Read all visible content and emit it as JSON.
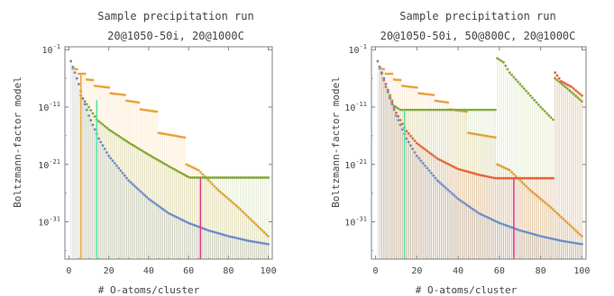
{
  "chart_data": [
    {
      "type": "scatter",
      "title": "Sample precipitation run",
      "subtitle": "20@1050-50i, 20@1000C",
      "xlabel": "# O-atoms/cluster",
      "ylabel": "Boltzmann-factor model",
      "x_ticks": [
        0,
        20,
        40,
        60,
        80,
        100
      ],
      "y_ticks": [
        {
          "base": "10",
          "exp": "-1",
          "value": -1
        },
        {
          "base": "10",
          "exp": "-11",
          "value": -11
        },
        {
          "base": "10",
          "exp": "-21",
          "value": -21
        },
        {
          "base": "10",
          "exp": "-31",
          "value": -31
        }
      ],
      "xlim": [
        -2,
        102
      ],
      "ylim_log10": [
        -37.5,
        -0.5
      ],
      "series": [
        {
          "color": "#e8a33c",
          "points": [
            [
              2,
              -4.3
            ],
            [
              4,
              -4.4
            ],
            [
              5,
              -5.2
            ],
            [
              8,
              -5.2
            ],
            [
              9,
              -6.2
            ],
            [
              12,
              -6.3
            ],
            [
              13,
              -7.3
            ],
            [
              20,
              -7.6
            ],
            [
              21,
              -8.6
            ],
            [
              28,
              -8.9
            ],
            [
              29,
              -9.9
            ],
            [
              35,
              -10.2
            ],
            [
              36,
              -11.4
            ],
            [
              44,
              -11.8
            ],
            [
              45,
              -15.5
            ],
            [
              58,
              -16.3
            ],
            [
              59,
              -21.0
            ],
            [
              65,
              -22.0
            ],
            [
              75,
              -25.5
            ],
            [
              85,
              -28.5
            ],
            [
              100,
              -33.5
            ]
          ]
        },
        {
          "color": "#86a83a",
          "points": [
            [
              6,
              -9.0
            ],
            [
              10,
              -11.0
            ],
            [
              14,
              -13.2
            ],
            [
              20,
              -14.9
            ],
            [
              30,
              -17.2
            ],
            [
              40,
              -19.3
            ],
            [
              50,
              -21.3
            ],
            [
              60,
              -23.2
            ],
            [
              61,
              -23.3
            ],
            [
              100,
              -23.3
            ]
          ]
        },
        {
          "color": "#6c8ec8",
          "points": [
            [
              1,
              -3.0
            ],
            [
              3,
              -5.0
            ],
            [
              5,
              -7.0
            ],
            [
              7,
              -9.5
            ],
            [
              10,
              -12.5
            ],
            [
              15,
              -16.5
            ],
            [
              20,
              -19.5
            ],
            [
              30,
              -23.8
            ],
            [
              40,
              -27.0
            ],
            [
              50,
              -29.5
            ],
            [
              60,
              -31.2
            ],
            [
              70,
              -32.5
            ],
            [
              80,
              -33.5
            ],
            [
              90,
              -34.3
            ],
            [
              100,
              -34.9
            ]
          ]
        }
      ],
      "markers": [
        {
          "x": 6,
          "top": -5.2,
          "color": "#e8a33c"
        },
        {
          "x": 14,
          "top": -9.8,
          "color": "#4ddf9f"
        },
        {
          "x": 66,
          "top": -23.3,
          "color": "#e0338a"
        }
      ],
      "grid": false
    },
    {
      "type": "scatter",
      "title": "Sample precipitation run",
      "subtitle": "20@1050-50i, 50@800C, 20@1000C",
      "xlabel": "# O-atoms/cluster",
      "ylabel": "Boltzmann-factor model",
      "x_ticks": [
        0,
        20,
        40,
        60,
        80,
        100
      ],
      "y_ticks": [
        {
          "base": "10",
          "exp": "-1",
          "value": -1
        },
        {
          "base": "10",
          "exp": "-11",
          "value": -11
        },
        {
          "base": "10",
          "exp": "-21",
          "value": -21
        },
        {
          "base": "10",
          "exp": "-31",
          "value": -31
        }
      ],
      "xlim": [
        -2,
        102
      ],
      "ylim_log10": [
        -37.5,
        -0.5
      ],
      "series": [
        {
          "color": "#e8a33c",
          "points": [
            [
              2,
              -4.3
            ],
            [
              4,
              -4.4
            ],
            [
              5,
              -5.2
            ],
            [
              8,
              -5.2
            ],
            [
              9,
              -6.2
            ],
            [
              12,
              -6.3
            ],
            [
              13,
              -7.3
            ],
            [
              20,
              -7.6
            ],
            [
              21,
              -8.6
            ],
            [
              28,
              -8.9
            ],
            [
              29,
              -9.9
            ],
            [
              35,
              -10.2
            ],
            [
              36,
              -11.4
            ],
            [
              44,
              -11.8
            ],
            [
              45,
              -15.5
            ],
            [
              58,
              -16.3
            ],
            [
              59,
              -21.0
            ],
            [
              65,
              -22.0
            ],
            [
              75,
              -25.5
            ],
            [
              85,
              -28.5
            ],
            [
              100,
              -33.5
            ]
          ]
        },
        {
          "color": "#86a83a",
          "points": [
            [
              3,
              -5.0
            ],
            [
              6,
              -8.0
            ],
            [
              9,
              -10.8
            ],
            [
              12,
              -11.5
            ],
            [
              58,
              -11.5
            ],
            [
              59,
              -2.5
            ],
            [
              62,
              -3.2
            ],
            [
              65,
              -5.0
            ],
            [
              70,
              -7.0
            ],
            [
              75,
              -9.0
            ],
            [
              80,
              -11.0
            ],
            [
              86,
              -13.2
            ],
            [
              87,
              -6.0
            ],
            [
              93,
              -7.8
            ],
            [
              100,
              -10.0
            ]
          ]
        },
        {
          "color": "#e8643c",
          "points": [
            [
              2,
              -4.0
            ],
            [
              5,
              -7.5
            ],
            [
              10,
              -12.0
            ],
            [
              15,
              -15.2
            ],
            [
              20,
              -17.3
            ],
            [
              30,
              -20.0
            ],
            [
              40,
              -21.8
            ],
            [
              50,
              -22.8
            ],
            [
              58,
              -23.4
            ],
            [
              59,
              -23.4
            ],
            [
              86,
              -23.4
            ],
            [
              87,
              -5.0
            ],
            [
              90,
              -6.5
            ],
            [
              95,
              -7.5
            ],
            [
              100,
              -9.0
            ]
          ]
        },
        {
          "color": "#6c8ec8",
          "points": [
            [
              1,
              -3.0
            ],
            [
              3,
              -5.0
            ],
            [
              5,
              -7.0
            ],
            [
              7,
              -9.5
            ],
            [
              10,
              -12.5
            ],
            [
              15,
              -16.5
            ],
            [
              20,
              -19.5
            ],
            [
              30,
              -23.8
            ],
            [
              40,
              -27.0
            ],
            [
              50,
              -29.5
            ],
            [
              60,
              -31.2
            ],
            [
              70,
              -32.5
            ],
            [
              80,
              -33.5
            ],
            [
              90,
              -34.3
            ],
            [
              100,
              -34.9
            ]
          ]
        }
      ],
      "markers": [
        {
          "x": 14,
          "top": -11.5,
          "color": "#4ddf9f"
        },
        {
          "x": 67,
          "top": -23.4,
          "color": "#e0338a"
        }
      ],
      "grid": false
    }
  ]
}
